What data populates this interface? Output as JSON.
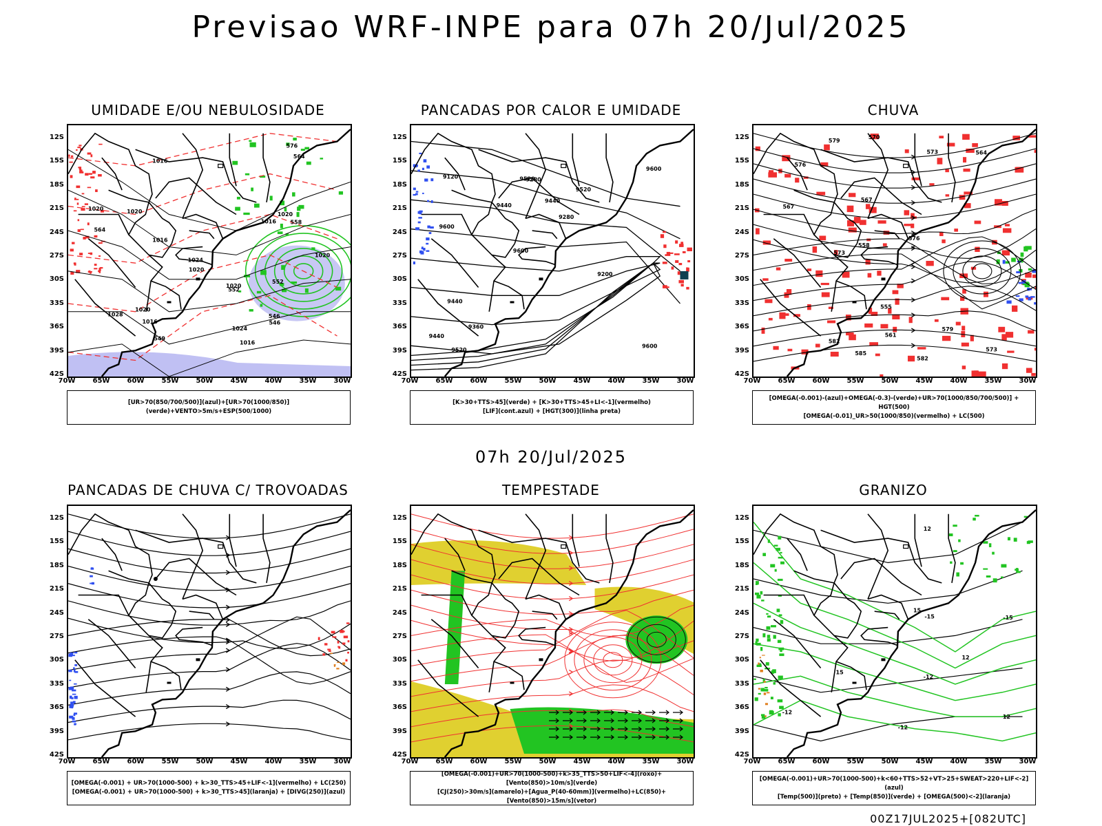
{
  "title": "Previsao WRF-INPE  para 07h 20/Jul/2025",
  "subtitle": "07h 20/Jul/2025",
  "footer": "00Z17JUL2025+[082UTC]",
  "lat_labels": [
    "12S",
    "15S",
    "18S",
    "21S",
    "24S",
    "27S",
    "30S",
    "33S",
    "36S",
    "39S",
    "42S"
  ],
  "lon_labels": [
    "70W",
    "65W",
    "60W",
    "55W",
    "50W",
    "45W",
    "40W",
    "35W",
    "30W"
  ],
  "panels": [
    {
      "title": "UMIDADE E/OU NEBULOSIDADE",
      "legend": [
        "[UR>70(850/700/500)](azul)+[UR>70(1000/850)](verde)+VENTO>5m/s+ESP(500/1000)"
      ],
      "contour_labels": [
        "1016",
        "1016",
        "1020",
        "1020",
        "1020",
        "1024",
        "1020",
        "1016",
        "1020",
        "1016",
        "1028",
        "1020",
        "1024",
        "1020",
        "1016",
        "576",
        "564",
        "564",
        "552",
        "558",
        "546",
        "552",
        "549",
        "546"
      ]
    },
    {
      "title": "PANCADAS POR CALOR E UMIDADE",
      "legend": [
        "[K>30+TTS>45](verde) + [K>30+TTS>45+LI<-1](vermelho)",
        "[LIF](cont.azul) + [HGT(300)](linha preta)"
      ],
      "contour_labels": [
        "9600",
        "9600",
        "9600",
        "9600",
        "9520",
        "9520",
        "9520",
        "9440",
        "9440",
        "9440",
        "9440",
        "9360",
        "9280",
        "9280",
        "9200",
        "9120"
      ]
    },
    {
      "title": "CHUVA",
      "legend": [
        "[OMEGA(-0.001)-(azul)+OMEGA(-0.3)-(verde)+UR>70(1000/850/700/500)] + HGT(500)",
        "[OMEGA(-0.01)_UR>50(1000/850)(vermelho) + LC(500)"
      ],
      "contour_labels": [
        "585",
        "582",
        "582",
        "579",
        "579",
        "576",
        "573",
        "573",
        "570",
        "567",
        "564",
        "561",
        "558",
        "555",
        "573",
        "576",
        "567"
      ]
    },
    {
      "title": "PANCADAS DE CHUVA C/ TROVOADAS",
      "legend": [
        "[OMEGA(-0.001) + UR>70(1000-500) + k>30_TTS>45+LIF<-1](vermelho) + LC(250)",
        "[OMEGA(-0.001) + UR>70(1000-500) + k>30_TTS>45](laranja) + [DIVG(250)](azul)"
      ],
      "contour_labels": []
    },
    {
      "title": "TEMPESTADE",
      "legend": [
        "[OMEGA(-0.001)+UR>70(1000-500)+k>35_TTS>50+LIF<-4](roxo)+[Vento(850)>10m/s](verde)",
        "[CJ(250)>30m/s](amarelo)+[Agua_P(40-60mm)](vermelho)+LC(850)+[Vento(850)>15m/s](vetor)"
      ],
      "contour_labels": []
    },
    {
      "title": "GRANIZO",
      "legend": [
        "[OMEGA(-0.001)+UR>70(1000-500)+k<60+TTS>52+VT>25+SWEAT>220+LIF<-2](azul)",
        "[Temp(500)](preto) + [Temp(850)](verde) + [OMEGA(500)<-2](laranja)"
      ],
      "contour_labels": [
        "-12",
        "-12",
        "-12",
        "-15",
        "-15",
        "12",
        "12",
        "15",
        "15",
        "12"
      ]
    }
  ],
  "colors": {
    "green": "#22c422",
    "red": "#f03030",
    "blue": "#3050f0",
    "lavender": "#b0b0f0",
    "yellow": "#e0d030",
    "orange": "#e08020",
    "black": "#000000"
  }
}
